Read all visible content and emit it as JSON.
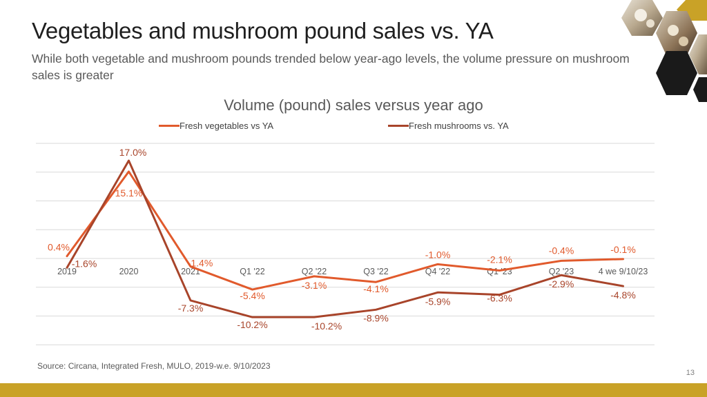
{
  "header": {
    "title": "Vegetables and mushroom pound sales vs. YA",
    "subtitle": "While both vegetable and mushroom pounds trended below year-ago levels, the volume pressure on mushroom sales is greater"
  },
  "footer": {
    "source": "Source: Circana, Integrated Fresh, MULO, 2019-w.e. 9/10/2023",
    "page_number": "13"
  },
  "colors": {
    "vegetables": "#e15a2c",
    "mushrooms": "#a8442a",
    "grid": "#d9d9d9",
    "axis_text": "#595959",
    "accent_bar": "#c9a227",
    "hex_dark": "#1a1a1a",
    "hex_gold": "#c9a227"
  },
  "decoration": {
    "icons": [
      "mushroom-photo-hexagon",
      "gold-hexagon",
      "black-hexagon"
    ]
  },
  "chart_data": {
    "type": "line",
    "title": "Volume (pound) sales versus year ago",
    "categories": [
      "2019",
      "2020",
      "2021",
      "Q1 '22",
      "Q2 '22",
      "Q3 '22",
      "Q4 '22",
      "Q1 '23",
      "Q2 '23",
      "4 we 9/10/23"
    ],
    "series": [
      {
        "name": "Fresh vegetables vs YA",
        "values": [
          0.4,
          15.1,
          -1.4,
          -5.4,
          -3.1,
          -4.1,
          -1.0,
          -2.1,
          -0.4,
          -0.1
        ],
        "labels": [
          "0.4%",
          "15.1%",
          "-1.4%",
          "-5.4%",
          "-3.1%",
          "-4.1%",
          "-1.0%",
          "-2.1%",
          "-0.4%",
          "-0.1%"
        ]
      },
      {
        "name": "Fresh mushrooms vs. YA",
        "values": [
          -1.6,
          17.0,
          -7.3,
          -10.2,
          -10.2,
          -8.9,
          -5.9,
          -6.3,
          -2.9,
          -4.8
        ],
        "labels": [
          "-1.6%",
          "17.0%",
          "-7.3%",
          "-10.2%",
          "-10.2%",
          "-8.9%",
          "-5.9%",
          "-6.3%",
          "-2.9%",
          "-4.8%"
        ]
      }
    ],
    "ylim": [
      -15,
      20
    ],
    "grid": true,
    "legend": "top-center"
  }
}
